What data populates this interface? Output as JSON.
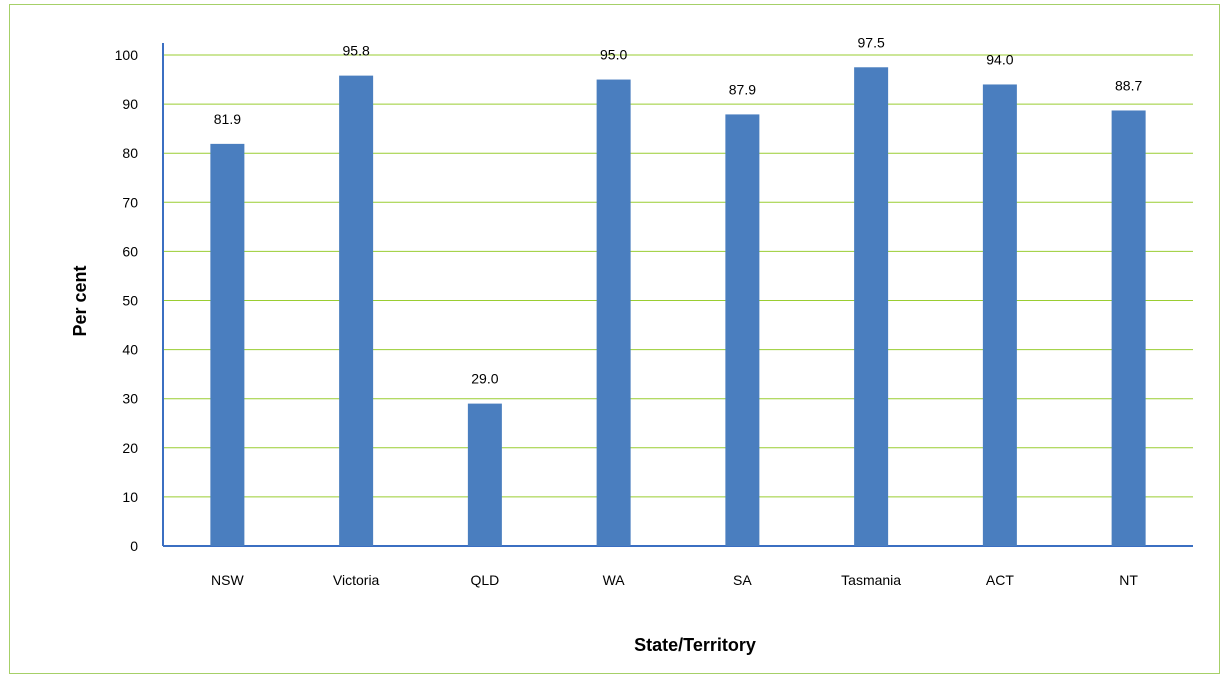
{
  "chart_data": {
    "type": "bar",
    "title": "",
    "xlabel": "State/Territory",
    "ylabel": "Per cent",
    "categories": [
      "NSW",
      "Victoria",
      "QLD",
      "WA",
      "SA",
      "Tasmania",
      "ACT",
      "NT"
    ],
    "values": [
      81.9,
      95.8,
      29.0,
      95.0,
      87.9,
      97.5,
      94.0,
      88.7
    ],
    "value_labels": [
      "81.9",
      "95.8",
      "29.0",
      "95.0",
      "87.9",
      "97.5",
      "94.0",
      "88.7"
    ],
    "ylim": [
      0,
      100
    ],
    "yticks": [
      0,
      10,
      20,
      30,
      40,
      50,
      60,
      70,
      80,
      90,
      100
    ],
    "ytick_labels": [
      "0",
      "10",
      "20",
      "30",
      "40",
      "50",
      "60",
      "70",
      "80",
      "90",
      "100"
    ],
    "grid": true,
    "legend": "none",
    "colors": {
      "bar": "#4a7ebf",
      "gridline": "#9acd32",
      "axis": "#3b6fc2",
      "frame": "#a6d068"
    }
  }
}
